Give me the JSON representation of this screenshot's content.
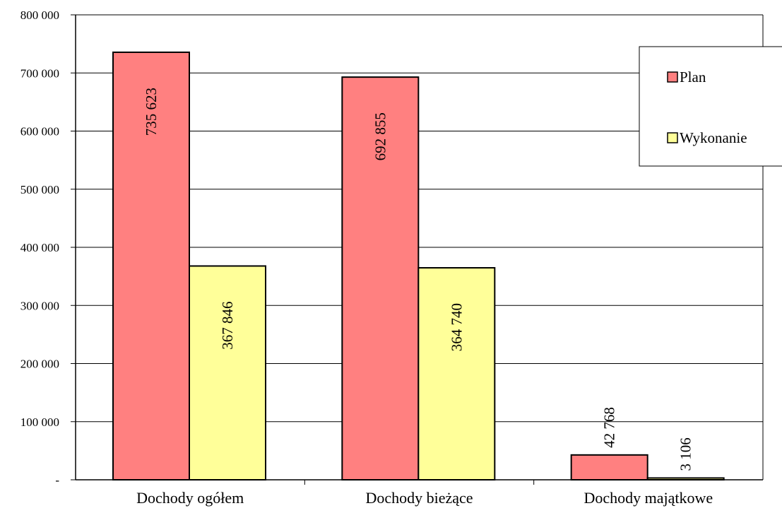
{
  "chart_data": {
    "type": "bar",
    "categories": [
      "Dochody ogółem",
      "Dochody bieżące",
      "Dochody majątkowe"
    ],
    "series": [
      {
        "name": "Plan",
        "values": [
          735623,
          692855,
          42768
        ],
        "labels": [
          "735 623",
          "692 855",
          "42 768"
        ],
        "color": "#ff8080"
      },
      {
        "name": "Wykonanie",
        "values": [
          367846,
          364740,
          3106
        ],
        "labels": [
          "367 846",
          "364 740",
          "3 106"
        ],
        "color": "#ffff99"
      }
    ],
    "ylim": [
      0,
      800000
    ],
    "yticks": [
      0,
      100000,
      200000,
      300000,
      400000,
      500000,
      600000,
      700000,
      800000
    ],
    "ytick_labels": [
      "-",
      "100 000",
      "200 000",
      "300 000",
      "400 000",
      "500 000",
      "600 000",
      "700 000",
      "800 000"
    ],
    "grid": true,
    "legend_position": "top-right"
  }
}
